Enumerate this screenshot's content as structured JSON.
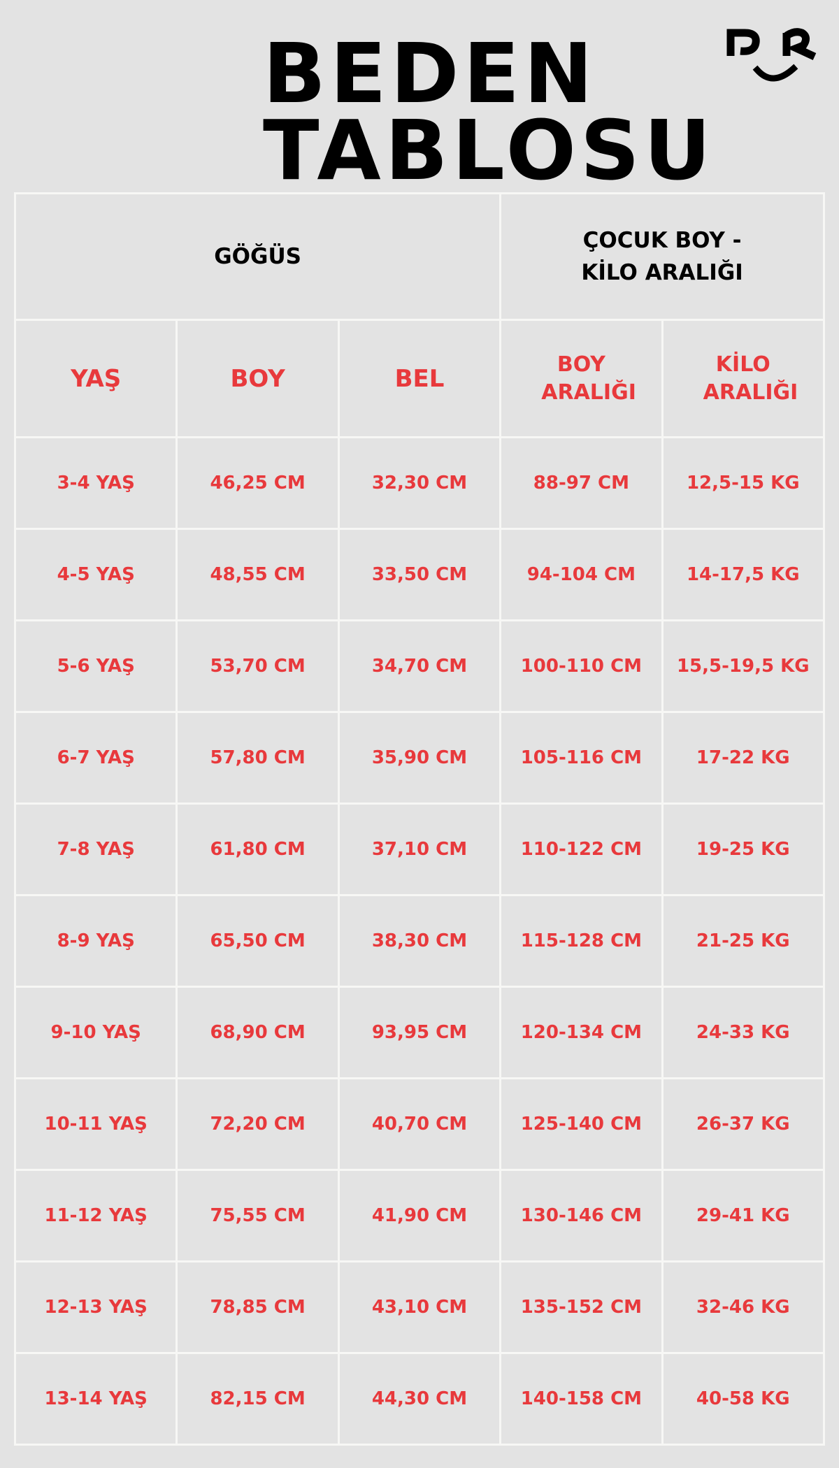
{
  "title": {
    "line1": "BEDEN",
    "line2": "TABLOSU"
  },
  "logo": {
    "text": "PR"
  },
  "colors": {
    "background": "#e3e3e3",
    "accent": "#e8393c",
    "grid": "#f7f7f5"
  },
  "table": {
    "group_headers": [
      "GÖĞÜS",
      "ÇOCUK BOY - KİLO ARALIĞI"
    ],
    "columns": [
      "YAŞ",
      "BOY",
      "BEL",
      "BOY ARALIĞI",
      "KİLO ARALIĞI"
    ],
    "rows": [
      [
        "3-4 YAŞ",
        "46,25 CM",
        "32,30 CM",
        "88-97 CM",
        "12,5-15 KG"
      ],
      [
        "4-5 YAŞ",
        "48,55 CM",
        "33,50 CM",
        "94-104 CM",
        "14-17,5 KG"
      ],
      [
        "5-6 YAŞ",
        "53,70 CM",
        "34,70 CM",
        "100-110 CM",
        "15,5-19,5 KG"
      ],
      [
        "6-7 YAŞ",
        "57,80 CM",
        "35,90 CM",
        "105-116 CM",
        "17-22 KG"
      ],
      [
        "7-8 YAŞ",
        "61,80 CM",
        "37,10 CM",
        "110-122 CM",
        "19-25 KG"
      ],
      [
        "8-9 YAŞ",
        "65,50 CM",
        "38,30 CM",
        "115-128 CM",
        "21-25 KG"
      ],
      [
        "9-10 YAŞ",
        "68,90 CM",
        "93,95 CM",
        "120-134 CM",
        "24-33 KG"
      ],
      [
        "10-11 YAŞ",
        "72,20 CM",
        "40,70 CM",
        "125-140 CM",
        "26-37 KG"
      ],
      [
        "11-12 YAŞ",
        "75,55 CM",
        "41,90 CM",
        "130-146 CM",
        "29-41 KG"
      ],
      [
        "12-13 YAŞ",
        "78,85 CM",
        "43,10 CM",
        "135-152 CM",
        "32-46 KG"
      ],
      [
        "13-14 YAŞ",
        "82,15 CM",
        "44,30 CM",
        "140-158 CM",
        "40-58 KG"
      ]
    ]
  }
}
